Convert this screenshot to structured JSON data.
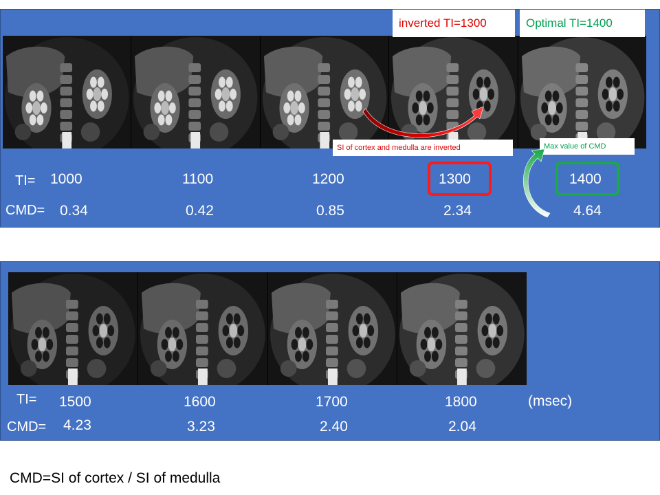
{
  "top": {
    "ti_label": "TI=",
    "cmd_label": "CMD=",
    "ti_values": [
      "1000",
      "1100",
      "1200",
      "1300",
      "1400"
    ],
    "cmd_values": [
      "0.34",
      "0.42",
      "0.85",
      "2.34",
      "4.64"
    ],
    "inverted_label": "inverted TI=1300",
    "optimal_label": "Optimal TI=1400",
    "inverted_note": "SI of cortex and medulla are inverted",
    "max_note": "Max value of CMD"
  },
  "bottom": {
    "ti_label": "TI=",
    "cmd_label": "CMD=",
    "ti_values": [
      "1500",
      "1600",
      "1700",
      "1800"
    ],
    "cmd_values": [
      "4.23",
      "3.23",
      "2.40",
      "2.04"
    ],
    "unit": "(msec)"
  },
  "formula": "CMD=SI of cortex / SI of medulla",
  "colors": {
    "panel": "#4472c4",
    "inverted": "#e00000",
    "optimal": "#00a050",
    "highlight_red": "#ff1a1a",
    "highlight_green": "#1aa84a"
  }
}
